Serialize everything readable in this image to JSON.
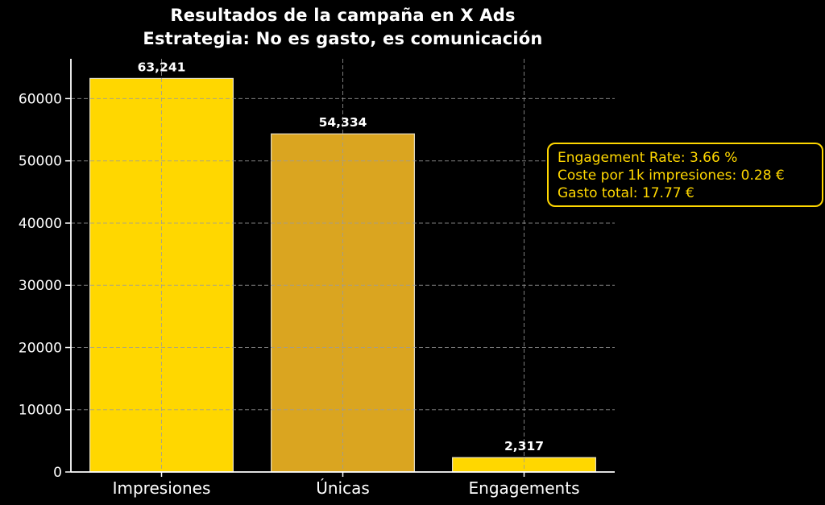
{
  "page": {
    "background_color": "#000000"
  },
  "title": {
    "line1": "Resultados de la campaña en X Ads",
    "line2": "Estrategia: No es gasto, es comunicación",
    "color": "#ffffff"
  },
  "annotation": {
    "lines": [
      "Engagement Rate: 3.66 %",
      "Coste por 1k impresiones: 0.28 €",
      "Gasto total: 17.77 €"
    ],
    "border_color": "#ffd700",
    "text_color": "#ffd700",
    "fill_color": "#000000"
  },
  "chart_data": {
    "type": "bar",
    "title": "Resultados de la campaña en X Ads",
    "subtitle": "Estrategia: No es gasto, es comunicación",
    "categories": [
      "Impresiones",
      "Únicas",
      "Engagements"
    ],
    "values": [
      63241,
      54334,
      2317
    ],
    "value_labels": [
      "63,241",
      "54,334",
      "2,317"
    ],
    "bar_colors": [
      "#ffd700",
      "#daa520",
      "#ffd700"
    ],
    "bar_edge_color": "#f5f0e1",
    "xlabel": "",
    "ylabel": "",
    "ylim": [
      0,
      66400
    ],
    "yticks": [
      0,
      10000,
      20000,
      30000,
      40000,
      50000,
      60000
    ],
    "ytick_labels": [
      "0",
      "10000",
      "20000",
      "30000",
      "40000",
      "50000",
      "60000"
    ],
    "grid": true,
    "grid_line_style": "dashed",
    "grid_color": "#9b9b9b",
    "grid_over_bars": true,
    "axis_color": "#ffffff",
    "tick_label_color": "#ffffff",
    "value_label_color": "#ffffff",
    "background_color": "#000000",
    "legend": "none"
  }
}
